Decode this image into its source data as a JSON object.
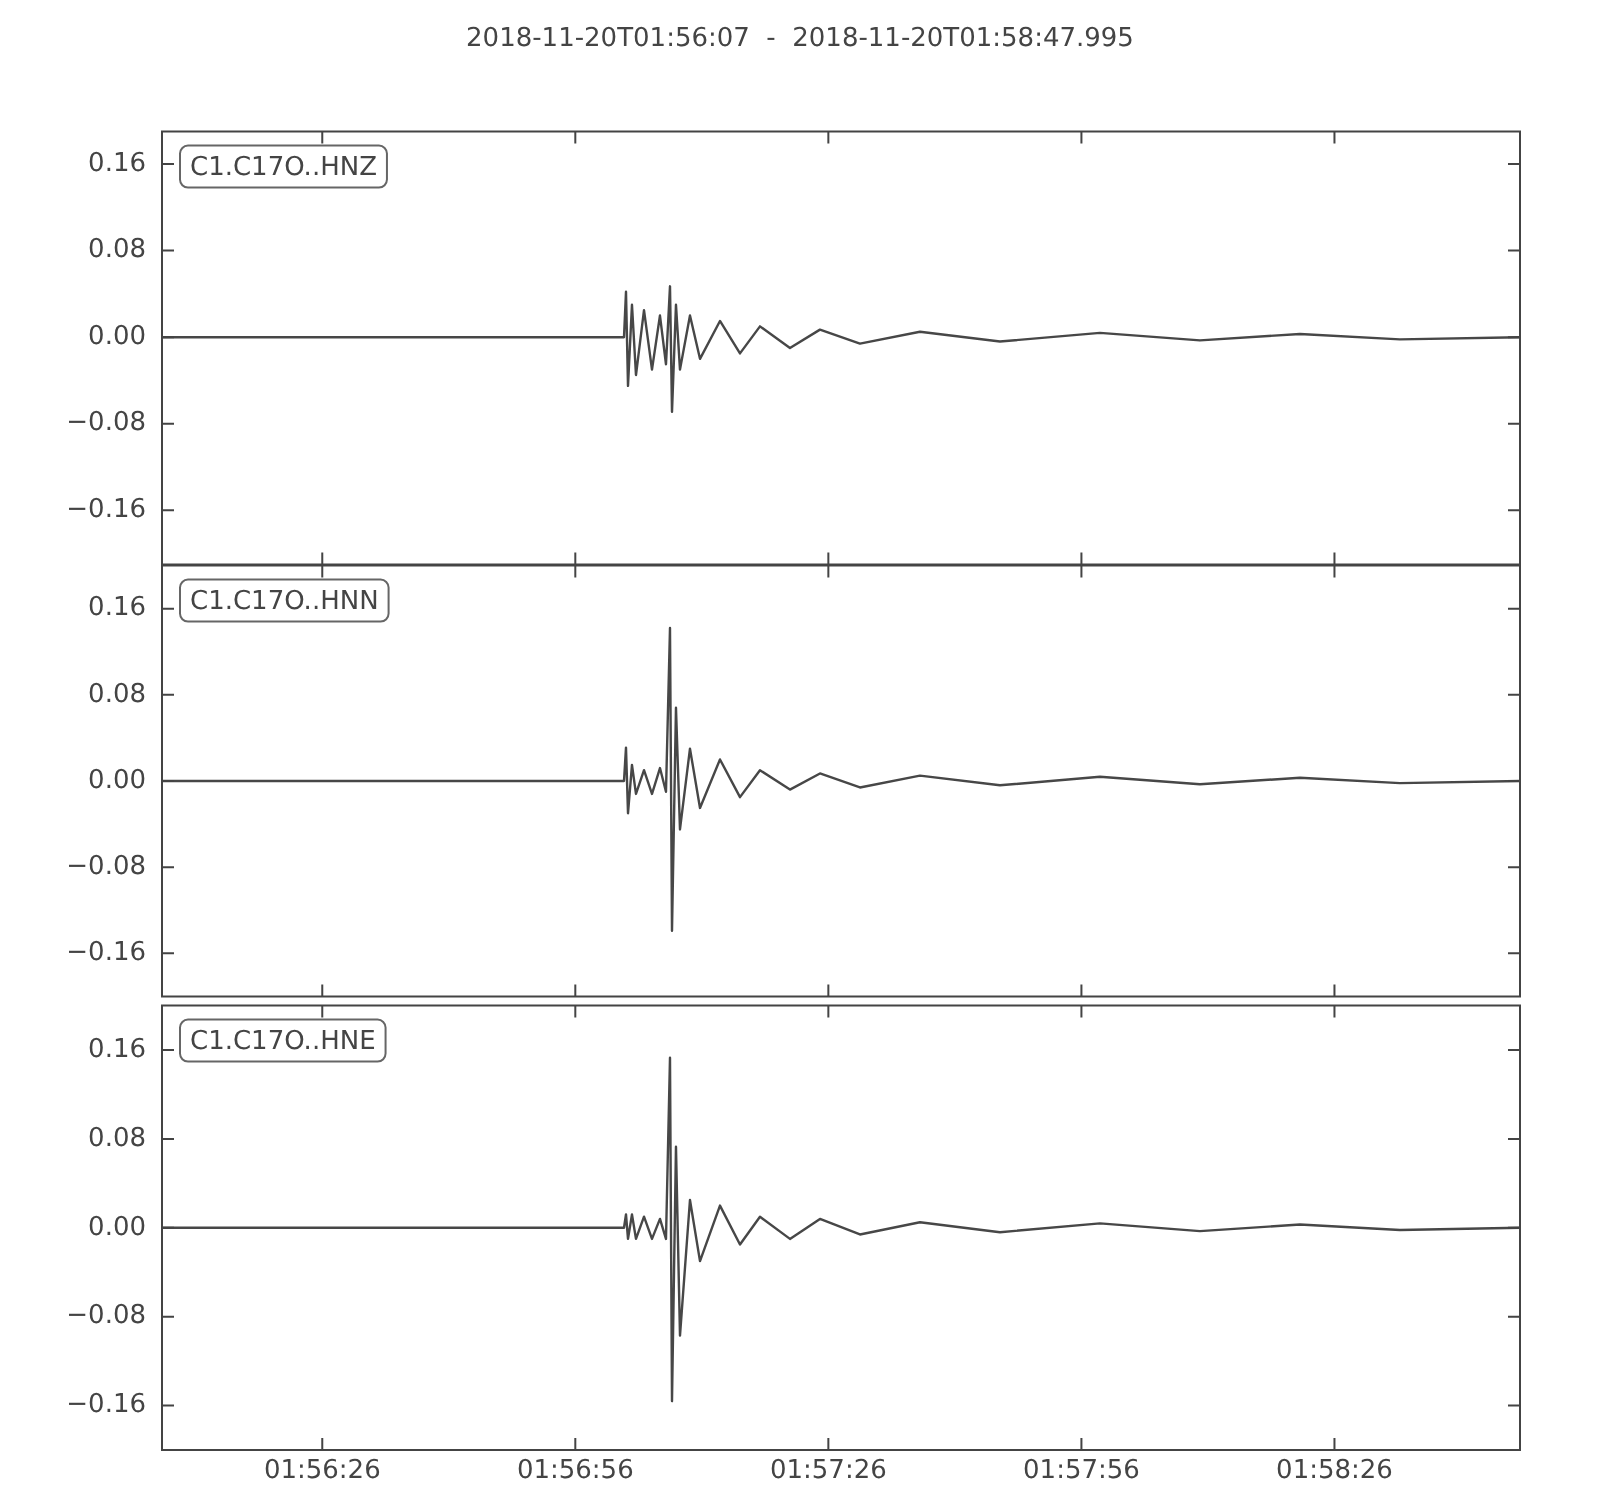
{
  "chart_data": [
    {
      "type": "line",
      "title": "2018-11-20T01:56:07  -  2018-11-20T01:58:47.995",
      "annotations": [
        "C1.C17O..HNZ"
      ],
      "tick_labels": "y",
      "grid": false,
      "legend": false,
      "marker": "none",
      "xlim": [
        1.935278,
        1.979999
      ],
      "xticks": [
        {
          "value": 1.940556,
          "label": null
        },
        {
          "value": 1.948889,
          "label": null
        },
        {
          "value": 1.957222,
          "label": null
        },
        {
          "value": 1.965556,
          "label": null
        },
        {
          "value": 1.973889,
          "label": null
        }
      ],
      "ylim": [
        -0.21,
        0.19
      ],
      "yticks": [
        {
          "value": -0.16,
          "label": "−0.16"
        },
        {
          "value": -0.08,
          "label": "−0.08"
        },
        {
          "value": 0,
          "label": "0.00"
        },
        {
          "value": 0.08,
          "label": "0.08"
        },
        {
          "value": 0.16,
          "label": "0.16"
        }
      ],
      "x": [
        1.935278,
        1.950492,
        1.950558,
        1.950624,
        1.950755,
        1.950887,
        1.951151,
        1.951414,
        1.951677,
        1.951875,
        1.952007,
        1.952073,
        1.952204,
        1.952336,
        1.952665,
        1.952995,
        1.953653,
        1.954312,
        1.95497,
        1.955958,
        1.956946,
        1.958263,
        1.960239,
        1.962873,
        1.966166,
        1.969459,
        1.972752,
        1.976045,
        1.979999
      ],
      "series": [
        {
          "color": "#474747",
          "values": [
            0,
            0,
            0.042,
            -0.045,
            0.03,
            -0.035,
            0.025,
            -0.03,
            0.02,
            -0.025,
            0.047,
            -0.069,
            0.03,
            -0.03,
            0.02,
            -0.02,
            0.015,
            -0.015,
            0.01,
            -0.01,
            0.007,
            -0.006,
            0.005,
            -0.004,
            0.004,
            -0.003,
            0.003,
            -0.002,
            0
          ]
        }
      ]
    },
    {
      "type": "line",
      "annotations": [
        "C1.C17O..HNN"
      ],
      "tick_labels": "y",
      "grid": false,
      "legend": false,
      "marker": "none",
      "xlim": [
        1.935278,
        1.979999
      ],
      "xticks": [
        {
          "value": 1.940556,
          "label": null
        },
        {
          "value": 1.948889,
          "label": null
        },
        {
          "value": 1.957222,
          "label": null
        },
        {
          "value": 1.965556,
          "label": null
        },
        {
          "value": 1.973889,
          "label": null
        }
      ],
      "ylim": [
        -0.2,
        0.2
      ],
      "yticks": [
        {
          "value": -0.16,
          "label": "−0.16"
        },
        {
          "value": -0.08,
          "label": "−0.08"
        },
        {
          "value": 0,
          "label": "0.00"
        },
        {
          "value": 0.08,
          "label": "0.08"
        },
        {
          "value": 0.16,
          "label": "0.16"
        }
      ],
      "x": [
        1.935278,
        1.950492,
        1.950558,
        1.950624,
        1.950755,
        1.950887,
        1.951151,
        1.951414,
        1.951677,
        1.951875,
        1.952007,
        1.952073,
        1.952204,
        1.952336,
        1.952665,
        1.952995,
        1.953653,
        1.954312,
        1.95497,
        1.955958,
        1.956946,
        1.958263,
        1.960239,
        1.962873,
        1.966166,
        1.969459,
        1.972752,
        1.976045,
        1.979999
      ],
      "series": [
        {
          "color": "#474747",
          "values": [
            0,
            0,
            0.031,
            -0.03,
            0.015,
            -0.012,
            0.01,
            -0.012,
            0.012,
            -0.01,
            0.142,
            -0.139,
            0.068,
            -0.045,
            0.03,
            -0.025,
            0.02,
            -0.015,
            0.01,
            -0.008,
            0.007,
            -0.006,
            0.005,
            -0.004,
            0.004,
            -0.003,
            0.003,
            -0.002,
            0
          ]
        }
      ]
    },
    {
      "type": "line",
      "annotations": [
        "C1.C17O..HNE"
      ],
      "grid": false,
      "legend": false,
      "marker": "none",
      "xlim": [
        1.935278,
        1.979999
      ],
      "xticks": [
        {
          "value": 1.940556,
          "label": "01:56:26"
        },
        {
          "value": 1.948889,
          "label": "01:56:56"
        },
        {
          "value": 1.957222,
          "label": "01:57:26"
        },
        {
          "value": 1.965556,
          "label": "01:57:56"
        },
        {
          "value": 1.973889,
          "label": "01:58:26"
        }
      ],
      "ylim": [
        -0.2,
        0.2
      ],
      "yticks": [
        {
          "value": -0.16,
          "label": "−0.16"
        },
        {
          "value": -0.08,
          "label": "−0.08"
        },
        {
          "value": 0,
          "label": "0.00"
        },
        {
          "value": 0.08,
          "label": "0.08"
        },
        {
          "value": 0.16,
          "label": "0.16"
        }
      ],
      "x": [
        1.935278,
        1.950492,
        1.950558,
        1.950624,
        1.950755,
        1.950887,
        1.951151,
        1.951414,
        1.951677,
        1.951875,
        1.952007,
        1.952073,
        1.952204,
        1.952336,
        1.952665,
        1.952995,
        1.953653,
        1.954312,
        1.95497,
        1.955958,
        1.956946,
        1.958263,
        1.960239,
        1.962873,
        1.966166,
        1.969459,
        1.972752,
        1.976045,
        1.979999
      ],
      "series": [
        {
          "color": "#474747",
          "values": [
            0,
            0,
            0.012,
            -0.01,
            0.012,
            -0.01,
            0.01,
            -0.01,
            0.008,
            -0.01,
            0.153,
            -0.156,
            0.073,
            -0.097,
            0.025,
            -0.03,
            0.02,
            -0.015,
            0.01,
            -0.01,
            0.008,
            -0.006,
            0.005,
            -0.004,
            0.004,
            -0.003,
            0.003,
            -0.002,
            0
          ]
        }
      ]
    }
  ]
}
